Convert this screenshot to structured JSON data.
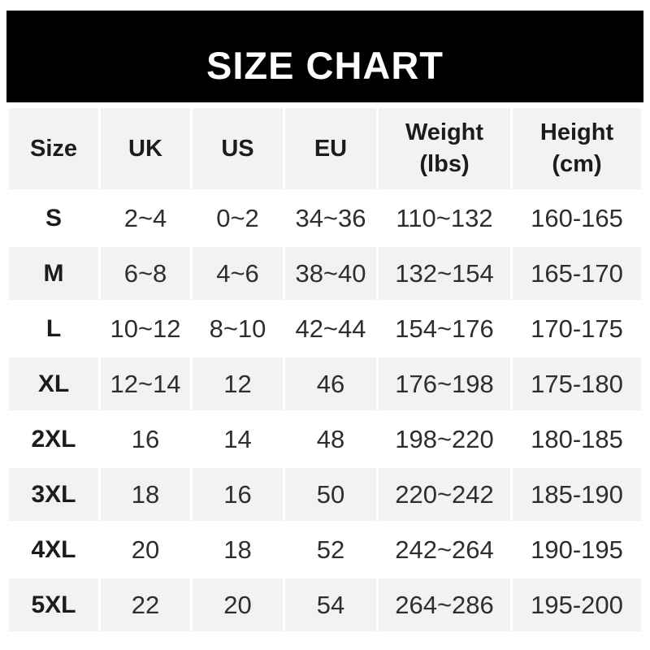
{
  "banner": {
    "title": "SIZE CHART"
  },
  "colors": {
    "banner_bg": "#000000",
    "banner_text": "#ffffff",
    "header_bg": "#f2f2f2",
    "row_alt_bg": "#f2f2f2",
    "row_bg": "#ffffff",
    "heading_text": "#1c1c1c",
    "value_text": "#2e2e2e"
  },
  "table": {
    "columns": [
      {
        "id": "size",
        "line1": "Size",
        "line2": ""
      },
      {
        "id": "uk",
        "line1": "UK",
        "line2": ""
      },
      {
        "id": "us",
        "line1": "US",
        "line2": ""
      },
      {
        "id": "eu",
        "line1": "EU",
        "line2": ""
      },
      {
        "id": "weight",
        "line1": "Weight",
        "line2": "(lbs)"
      },
      {
        "id": "height",
        "line1": "Height",
        "line2": "(cm)"
      }
    ],
    "rows": [
      {
        "size": "S",
        "uk": "2~4",
        "us": "0~2",
        "eu": "34~36",
        "weight": "110~132",
        "height": "160-165"
      },
      {
        "size": "M",
        "uk": "6~8",
        "us": "4~6",
        "eu": "38~40",
        "weight": "132~154",
        "height": "165-170"
      },
      {
        "size": "L",
        "uk": "10~12",
        "us": "8~10",
        "eu": "42~44",
        "weight": "154~176",
        "height": "170-175"
      },
      {
        "size": "XL",
        "uk": "12~14",
        "us": "12",
        "eu": "46",
        "weight": "176~198",
        "height": "175-180"
      },
      {
        "size": "2XL",
        "uk": "16",
        "us": "14",
        "eu": "48",
        "weight": "198~220",
        "height": "180-185"
      },
      {
        "size": "3XL",
        "uk": "18",
        "us": "16",
        "eu": "50",
        "weight": "220~242",
        "height": "185-190"
      },
      {
        "size": "4XL",
        "uk": "20",
        "us": "18",
        "eu": "52",
        "weight": "242~264",
        "height": "190-195"
      },
      {
        "size": "5XL",
        "uk": "22",
        "us": "20",
        "eu": "54",
        "weight": "264~286",
        "height": "195-200"
      }
    ]
  }
}
